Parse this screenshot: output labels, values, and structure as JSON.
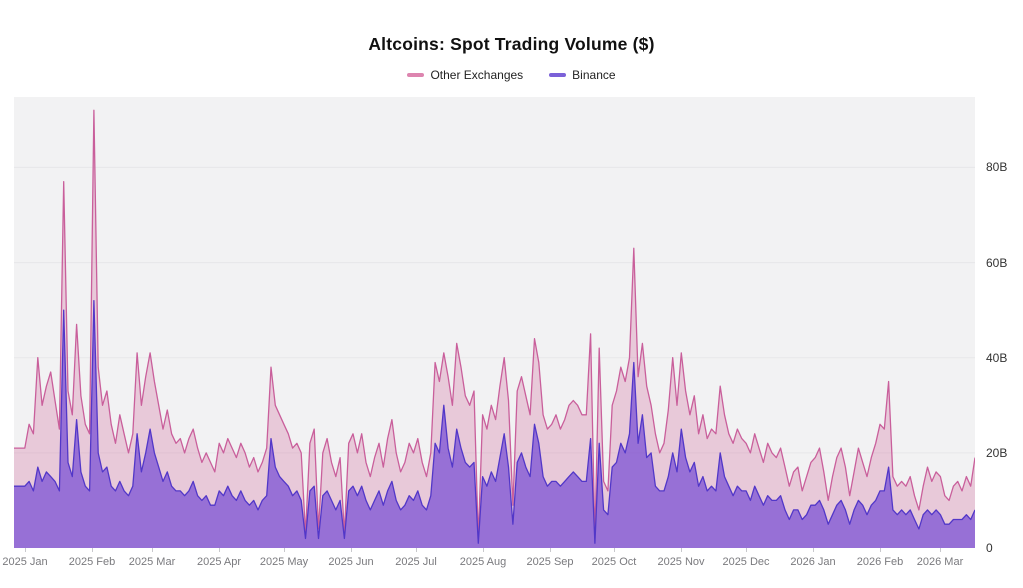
{
  "title": "Altcoins: Spot Trading Volume ($)",
  "legend": [
    {
      "label": "Other Exchanges",
      "swatch_color": "#dd85af"
    },
    {
      "label": "Binance",
      "swatch_color": "#7b61d8"
    }
  ],
  "colors": {
    "page_background": "#ffffff",
    "plot_background": "#f2f2f3",
    "gridline": "#e7e7e9",
    "other_exchanges_line": "#c95f9b",
    "other_exchanges_fill": "rgba(208,106,158,0.30)",
    "binance_line": "#5237c8",
    "binance_fill": "rgba(124,82,212,0.75)",
    "axis_text": "#333333",
    "x_axis_text": "#7a7a7e"
  },
  "chart_data": {
    "type": "area",
    "mode": "overlapping",
    "title": "Altcoins: Spot Trading Volume ($)",
    "xlabel": "",
    "ylabel": "",
    "unit": "B",
    "grid": "horizontal",
    "legend_position": "top-center",
    "ylim": [
      0,
      94.8
    ],
    "yticks": [
      {
        "value": 0,
        "label": "0"
      },
      {
        "value": 20,
        "label": "20B"
      },
      {
        "value": 40,
        "label": "40B"
      },
      {
        "value": 60,
        "label": "60B"
      },
      {
        "value": 80,
        "label": "80B"
      }
    ],
    "x_tick_labels": [
      "2025 Jan",
      "2025 Feb",
      "2025 Mar",
      "2025 Apr",
      "2025 May",
      "2025 Jun",
      "2025 Jul",
      "2025 Aug",
      "2025 Sep",
      "2025 Oct",
      "2025 Nov",
      "2025 Dec",
      "2026 Jan",
      "2026 Feb",
      "2026 Mar"
    ],
    "x_tick_day_offsets": [
      0,
      31,
      59,
      90,
      120,
      151,
      181,
      212,
      243,
      273,
      304,
      334,
      365,
      396,
      424
    ],
    "sample_interval_days": 2,
    "total_days": 445,
    "first_sample_day": 5,
    "series": [
      {
        "name": "Other Exchanges",
        "color": "#c95f9b",
        "fill": "rgba(208,106,158,0.30)",
        "values": [
          21,
          26,
          24,
          40,
          30,
          34,
          37,
          31,
          25,
          77,
          33,
          28,
          47,
          32,
          26,
          24,
          92,
          38,
          30,
          33,
          26,
          22,
          28,
          24,
          20,
          24,
          41,
          30,
          36,
          41,
          35,
          30,
          25,
          29,
          24,
          22,
          23,
          20,
          23,
          25,
          21,
          18,
          20,
          18,
          16,
          22,
          20,
          23,
          21,
          19,
          22,
          20,
          17,
          19,
          16,
          18,
          21,
          38,
          30,
          28,
          26,
          24,
          21,
          22,
          20,
          3,
          22,
          25,
          4,
          20,
          23,
          18,
          15,
          19,
          3,
          22,
          24,
          20,
          24,
          18,
          15,
          19,
          22,
          17,
          23,
          27,
          20,
          16,
          18,
          22,
          20,
          23,
          18,
          15,
          20,
          39,
          35,
          41,
          36,
          30,
          43,
          38,
          32,
          30,
          33,
          2,
          28,
          25,
          30,
          27,
          34,
          40,
          31,
          9,
          33,
          36,
          32,
          28,
          44,
          39,
          28,
          25,
          26,
          28,
          25,
          27,
          30,
          31,
          30,
          28,
          28,
          45,
          2,
          42,
          14,
          12,
          30,
          33,
          38,
          35,
          40,
          63,
          36,
          43,
          34,
          30,
          24,
          20,
          22,
          29,
          40,
          30,
          41,
          33,
          28,
          32,
          24,
          28,
          23,
          25,
          24,
          34,
          28,
          24,
          22,
          25,
          23,
          22,
          20,
          24,
          21,
          18,
          22,
          20,
          19,
          21,
          17,
          13,
          16,
          17,
          12,
          15,
          18,
          19,
          21,
          16,
          10,
          15,
          19,
          21,
          17,
          11,
          16,
          21,
          18,
          15,
          19,
          22,
          26,
          25,
          35,
          15,
          13,
          14,
          13,
          15,
          11,
          8,
          13,
          17,
          14,
          16,
          15,
          11,
          10,
          13,
          14,
          12,
          15,
          13,
          19
        ]
      },
      {
        "name": "Binance",
        "color": "#5237c8",
        "fill": "rgba(124,82,212,0.75)",
        "values": [
          13,
          14,
          12,
          17,
          14,
          16,
          15,
          14,
          12,
          50,
          18,
          15,
          27,
          16,
          13,
          12,
          52,
          20,
          16,
          17,
          13,
          12,
          14,
          12,
          11,
          13,
          24,
          16,
          20,
          25,
          20,
          17,
          14,
          16,
          13,
          12,
          12,
          11,
          12,
          14,
          11,
          10,
          11,
          9,
          9,
          12,
          11,
          13,
          11,
          10,
          12,
          10,
          9,
          10,
          8,
          10,
          11,
          23,
          17,
          15,
          14,
          13,
          11,
          12,
          10,
          2,
          12,
          13,
          2,
          11,
          12,
          10,
          8,
          10,
          2,
          12,
          13,
          11,
          13,
          10,
          8,
          10,
          12,
          9,
          12,
          14,
          10,
          8,
          9,
          11,
          10,
          12,
          9,
          8,
          11,
          22,
          20,
          30,
          21,
          17,
          25,
          21,
          18,
          17,
          18,
          1,
          15,
          13,
          16,
          14,
          19,
          24,
          17,
          5,
          18,
          20,
          17,
          15,
          26,
          22,
          15,
          13,
          14,
          14,
          13,
          14,
          15,
          16,
          15,
          14,
          14,
          23,
          1,
          22,
          8,
          7,
          17,
          18,
          22,
          20,
          24,
          39,
          22,
          28,
          19,
          20,
          13,
          12,
          12,
          15,
          20,
          16,
          25,
          19,
          16,
          18,
          13,
          15,
          12,
          13,
          12,
          20,
          15,
          13,
          11,
          13,
          12,
          12,
          10,
          13,
          11,
          9,
          11,
          10,
          10,
          11,
          8,
          6,
          8,
          8,
          6,
          7,
          9,
          9,
          10,
          8,
          5,
          7,
          9,
          10,
          8,
          5,
          8,
          10,
          9,
          7,
          9,
          10,
          12,
          12,
          17,
          8,
          7,
          8,
          7,
          8,
          6,
          4,
          7,
          8,
          7,
          8,
          7,
          5,
          5,
          6,
          6,
          6,
          7,
          6,
          8
        ]
      }
    ]
  }
}
